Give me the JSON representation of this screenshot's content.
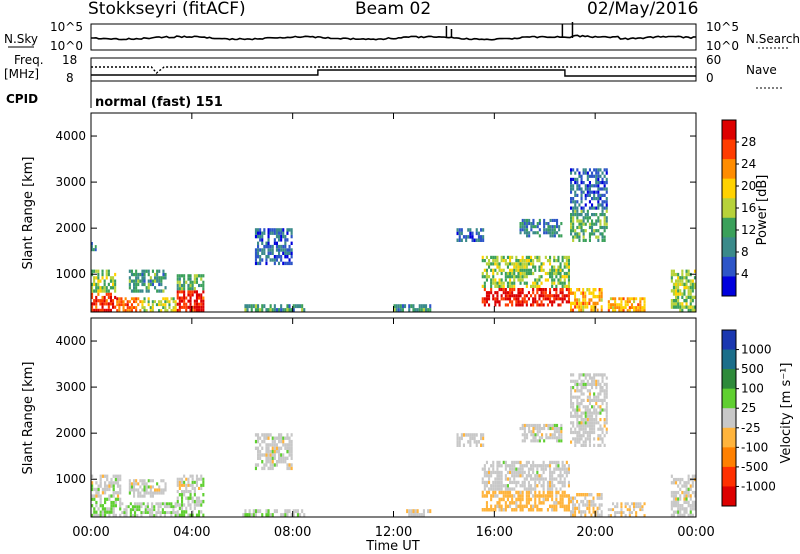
{
  "header": {
    "station": "Stokkseyri (fitACF)",
    "beam": "Beam 02",
    "date": "02/May/2016"
  },
  "status_panels": {
    "nsky_label": "N.Sky",
    "nsearch_label": "N.Search",
    "log_ticks": [
      "10^5",
      "10^0"
    ],
    "freq_label_1": "Freq.",
    "freq_label_2": "[MHz]",
    "freq_ticks": [
      "18",
      "8"
    ],
    "nave_label": "Nave",
    "nave_ticks": [
      "60",
      "0"
    ],
    "cpid_label": "CPID",
    "cpid_value": "normal (fast) 151"
  },
  "axes": {
    "xlabel": "Time UT",
    "ylabel": "Slant Range [km]",
    "time_ticks": [
      "00:00",
      "04:00",
      "08:00",
      "12:00",
      "16:00",
      "20:00",
      "00:00"
    ],
    "range_ticks": [
      "1000",
      "2000",
      "3000",
      "4000"
    ]
  },
  "colorbars": {
    "power_label": "Power [dB]",
    "power_ticks": [
      "28",
      "24",
      "20",
      "16",
      "12",
      "8",
      "4"
    ],
    "velocity_label": "Velocity [m s⁻¹]",
    "velocity_ticks": [
      "1000",
      "500",
      "100",
      "25",
      "-25",
      "-100",
      "-500",
      "-1000"
    ]
  },
  "colors": {
    "power_scale": [
      "#0000dd",
      "#2d55c8",
      "#3a8a8a",
      "#3aa05a",
      "#b7d23a",
      "#ffd200",
      "#ff8c00",
      "#ff3c00",
      "#dd0000"
    ],
    "velocity_scale": [
      "#1a37b0",
      "#1b6e8a",
      "#2e8a3a",
      "#5fcf30",
      "#c8c8c8",
      "#ffb43c",
      "#ff8000",
      "#ff3000",
      "#dd0000"
    ]
  },
  "chart_data": [
    {
      "type": "heatmap",
      "title": "Power [dB]",
      "xlabel": "Time UT",
      "ylabel": "Slant Range [km]",
      "xlim_hours": [
        0,
        24
      ],
      "ylim_km": [
        180,
        4500
      ],
      "clim": [
        0,
        30
      ],
      "patches": [
        {
          "t": [
            0.0,
            1.0
          ],
          "r": [
            180,
            600
          ],
          "v": 26
        },
        {
          "t": [
            0.0,
            1.0
          ],
          "r": [
            600,
            1100
          ],
          "v": 14
        },
        {
          "t": [
            1.0,
            2.0
          ],
          "r": [
            180,
            500
          ],
          "v": 24
        },
        {
          "t": [
            2.0,
            3.4
          ],
          "r": [
            180,
            500
          ],
          "v": 16
        },
        {
          "t": [
            3.4,
            4.5
          ],
          "r": [
            180,
            650
          ],
          "v": 27
        },
        {
          "t": [
            3.4,
            4.5
          ],
          "r": [
            650,
            1000
          ],
          "v": 12
        },
        {
          "t": [
            1.5,
            3.0
          ],
          "r": [
            600,
            1100
          ],
          "v": 10
        },
        {
          "t": [
            0.0,
            0.3
          ],
          "r": [
            1500,
            1700
          ],
          "v": 8
        },
        {
          "t": [
            6.5,
            8.0
          ],
          "r": [
            1200,
            2000
          ],
          "v": 6
        },
        {
          "t": [
            6.0,
            8.5
          ],
          "r": [
            180,
            350
          ],
          "v": 10
        },
        {
          "t": [
            12.0,
            13.5
          ],
          "r": [
            180,
            350
          ],
          "v": 10
        },
        {
          "t": [
            14.5,
            15.6
          ],
          "r": [
            1700,
            2000
          ],
          "v": 6
        },
        {
          "t": [
            15.5,
            19.0
          ],
          "r": [
            300,
            700
          ],
          "v": 28
        },
        {
          "t": [
            15.5,
            19.0
          ],
          "r": [
            700,
            1400
          ],
          "v": 14
        },
        {
          "t": [
            17.0,
            18.7
          ],
          "r": [
            1800,
            2200
          ],
          "v": 8
        },
        {
          "t": [
            19.0,
            20.5
          ],
          "r": [
            1700,
            2400
          ],
          "v": 12
        },
        {
          "t": [
            19.0,
            20.5
          ],
          "r": [
            2400,
            3300
          ],
          "v": 6
        },
        {
          "t": [
            19.0,
            20.3
          ],
          "r": [
            180,
            700
          ],
          "v": 20
        },
        {
          "t": [
            20.5,
            22.0
          ],
          "r": [
            180,
            500
          ],
          "v": 20
        },
        {
          "t": [
            23.0,
            24.0
          ],
          "r": [
            180,
            1100
          ],
          "v": 14
        }
      ]
    },
    {
      "type": "heatmap",
      "title": "Velocity [m s⁻¹]",
      "xlabel": "Time UT",
      "ylabel": "Slant Range [km]",
      "xlim_hours": [
        0,
        24
      ],
      "ylim_km": [
        180,
        4500
      ],
      "clim": [
        -1200,
        1200
      ],
      "patches": [
        {
          "t": [
            0.0,
            1.2
          ],
          "r": [
            180,
            600
          ],
          "v": 150
        },
        {
          "t": [
            0.0,
            1.2
          ],
          "r": [
            600,
            1100
          ],
          "v": 0
        },
        {
          "t": [
            1.2,
            3.4
          ],
          "r": [
            180,
            500
          ],
          "v": 120
        },
        {
          "t": [
            1.5,
            3.0
          ],
          "r": [
            600,
            1000
          ],
          "v": 0
        },
        {
          "t": [
            3.4,
            4.5
          ],
          "r": [
            180,
            700
          ],
          "v": 130
        },
        {
          "t": [
            3.4,
            4.5
          ],
          "r": [
            700,
            1100
          ],
          "v": 0
        },
        {
          "t": [
            6.5,
            8.0
          ],
          "r": [
            1200,
            2000
          ],
          "v": 0
        },
        {
          "t": [
            6.0,
            8.5
          ],
          "r": [
            180,
            350
          ],
          "v": 60
        },
        {
          "t": [
            12.5,
            13.5
          ],
          "r": [
            180,
            350
          ],
          "v": -80
        },
        {
          "t": [
            14.5,
            15.6
          ],
          "r": [
            1700,
            2000
          ],
          "v": 0
        },
        {
          "t": [
            15.5,
            19.0
          ],
          "r": [
            300,
            750
          ],
          "v": -250
        },
        {
          "t": [
            15.5,
            19.0
          ],
          "r": [
            750,
            1400
          ],
          "v": 0
        },
        {
          "t": [
            17.0,
            18.7
          ],
          "r": [
            1800,
            2200
          ],
          "v": 0
        },
        {
          "t": [
            19.0,
            20.5
          ],
          "r": [
            1700,
            2400
          ],
          "v": 0
        },
        {
          "t": [
            19.0,
            20.5
          ],
          "r": [
            2400,
            3300
          ],
          "v": 0
        },
        {
          "t": [
            19.0,
            20.3
          ],
          "r": [
            180,
            700
          ],
          "v": -120
        },
        {
          "t": [
            20.5,
            22.0
          ],
          "r": [
            180,
            500
          ],
          "v": -100
        },
        {
          "t": [
            23.0,
            24.0
          ],
          "r": [
            180,
            1100
          ],
          "v": 0
        }
      ]
    }
  ]
}
